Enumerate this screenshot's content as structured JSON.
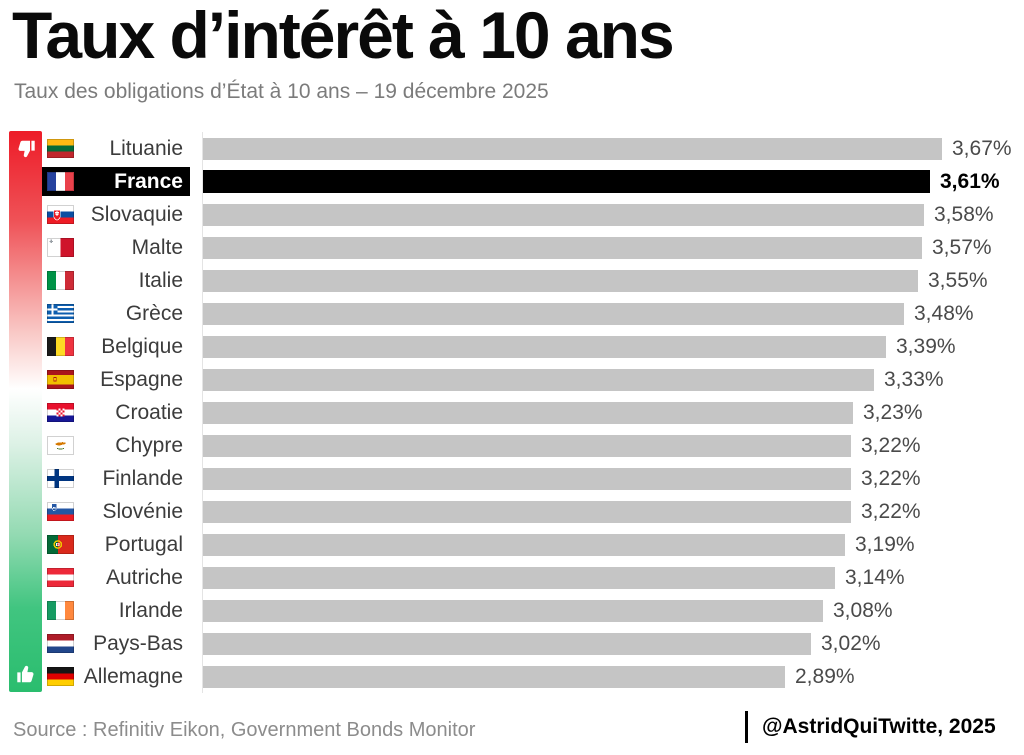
{
  "header": {
    "title": "Taux d’intérêt à 10 ans",
    "subtitle": "Taux des obligations d’État à 10 ans – 19 décembre 2025"
  },
  "legend": {
    "bad_icon": "thumbs-down-icon",
    "good_icon": "thumbs-up-icon"
  },
  "colors": {
    "bar": "#c5c5c5",
    "highlight": "#000000",
    "gradient_top": "#ed1c28",
    "gradient_mid": "#ffffff",
    "gradient_bottom": "#2abd6e",
    "country_label": "#3c3c3c",
    "value_label": "#4a4a4a",
    "subtitle_gray": "#7b7b7b",
    "source_gray": "#8c8c8c"
  },
  "chart_data": {
    "type": "bar",
    "orientation": "horizontal",
    "title": "Taux d’intérêt à 10 ans",
    "subtitle": "Taux des obligations d’État à 10 ans – 19 décembre 2025",
    "unit": "%",
    "xlim": [
      0,
      3.67
    ],
    "value_format": "comma-decimal",
    "highlight_country": "France",
    "rows": [
      {
        "country": "Lituanie",
        "flag": "lituanie",
        "value": 3.67,
        "label": "3,67%",
        "highlight": false
      },
      {
        "country": "France",
        "flag": "france",
        "value": 3.61,
        "label": "3,61%",
        "highlight": true
      },
      {
        "country": "Slovaquie",
        "flag": "slovaquie",
        "value": 3.58,
        "label": "3,58%",
        "highlight": false
      },
      {
        "country": "Malte",
        "flag": "malte",
        "value": 3.57,
        "label": "3,57%",
        "highlight": false
      },
      {
        "country": "Italie",
        "flag": "italie",
        "value": 3.55,
        "label": "3,55%",
        "highlight": false
      },
      {
        "country": "Grèce",
        "flag": "grece",
        "value": 3.48,
        "label": "3,48%",
        "highlight": false
      },
      {
        "country": "Belgique",
        "flag": "belgique",
        "value": 3.39,
        "label": "3,39%",
        "highlight": false
      },
      {
        "country": "Espagne",
        "flag": "espagne",
        "value": 3.33,
        "label": "3,33%",
        "highlight": false
      },
      {
        "country": "Croatie",
        "flag": "croatie",
        "value": 3.23,
        "label": "3,23%",
        "highlight": false
      },
      {
        "country": "Chypre",
        "flag": "chypre",
        "value": 3.22,
        "label": "3,22%",
        "highlight": false
      },
      {
        "country": "Finlande",
        "flag": "finlande",
        "value": 3.22,
        "label": "3,22%",
        "highlight": false
      },
      {
        "country": "Slovénie",
        "flag": "slovenie",
        "value": 3.22,
        "label": "3,22%",
        "highlight": false
      },
      {
        "country": "Portugal",
        "flag": "portugal",
        "value": 3.19,
        "label": "3,19%",
        "highlight": false
      },
      {
        "country": "Autriche",
        "flag": "autriche",
        "value": 3.14,
        "label": "3,14%",
        "highlight": false
      },
      {
        "country": "Irlande",
        "flag": "irlande",
        "value": 3.08,
        "label": "3,08%",
        "highlight": false
      },
      {
        "country": "Pays-Bas",
        "flag": "paysbas",
        "value": 3.02,
        "label": "3,02%",
        "highlight": false
      },
      {
        "country": "Allemagne",
        "flag": "allemagne",
        "value": 2.89,
        "label": "2,89%",
        "highlight": false
      }
    ]
  },
  "footer": {
    "source": "Source : Refinitiv Eikon, Government Bonds Monitor",
    "credit": "@AstridQuiTwitte, 2025"
  }
}
